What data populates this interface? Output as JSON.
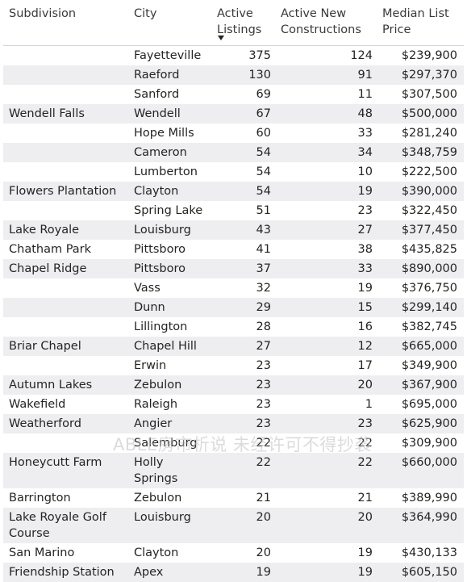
{
  "headers": {
    "subdivision": "Subdivision",
    "city": "City",
    "active_line1": "Active",
    "active_line2": "Listings",
    "new_line1": "Active New",
    "new_line2": "Constructions",
    "price_line1": "Median List",
    "price_line2": "Price"
  },
  "sort": {
    "column": "Active Listings",
    "direction": "descending",
    "icon": "sort-down-icon"
  },
  "colors": {
    "alt_row": "#eeedf0",
    "text": "#252423"
  },
  "rows": [
    {
      "subdivision": "",
      "city": "Fayetteville",
      "active": "375",
      "new": "124",
      "price": "$239,900"
    },
    {
      "subdivision": "",
      "city": "Raeford",
      "active": "130",
      "new": "91",
      "price": "$297,370"
    },
    {
      "subdivision": "",
      "city": "Sanford",
      "active": "69",
      "new": "11",
      "price": "$307,500"
    },
    {
      "subdivision": "Wendell Falls",
      "city": "Wendell",
      "active": "67",
      "new": "48",
      "price": "$500,000"
    },
    {
      "subdivision": "",
      "city": "Hope Mills",
      "active": "60",
      "new": "33",
      "price": "$281,240"
    },
    {
      "subdivision": "",
      "city": "Cameron",
      "active": "54",
      "new": "34",
      "price": "$348,759"
    },
    {
      "subdivision": "",
      "city": "Lumberton",
      "active": "54",
      "new": "10",
      "price": "$222,500"
    },
    {
      "subdivision": "Flowers Plantation",
      "city": "Clayton",
      "active": "54",
      "new": "19",
      "price": "$390,000"
    },
    {
      "subdivision": "",
      "city": "Spring Lake",
      "active": "51",
      "new": "23",
      "price": "$322,450"
    },
    {
      "subdivision": "Lake Royale",
      "city": "Louisburg",
      "active": "43",
      "new": "27",
      "price": "$377,450"
    },
    {
      "subdivision": "Chatham Park",
      "city": "Pittsboro",
      "active": "41",
      "new": "38",
      "price": "$435,825"
    },
    {
      "subdivision": "Chapel Ridge",
      "city": "Pittsboro",
      "active": "37",
      "new": "33",
      "price": "$890,000"
    },
    {
      "subdivision": "",
      "city": "Vass",
      "active": "32",
      "new": "19",
      "price": "$376,750"
    },
    {
      "subdivision": "",
      "city": "Dunn",
      "active": "29",
      "new": "15",
      "price": "$299,140"
    },
    {
      "subdivision": "",
      "city": "Lillington",
      "active": "28",
      "new": "16",
      "price": "$382,745"
    },
    {
      "subdivision": "Briar Chapel",
      "city": "Chapel Hill",
      "active": "27",
      "new": "12",
      "price": "$665,000"
    },
    {
      "subdivision": "",
      "city": "Erwin",
      "active": "23",
      "new": "17",
      "price": "$349,900"
    },
    {
      "subdivision": "Autumn Lakes",
      "city": "Zebulon",
      "active": "23",
      "new": "20",
      "price": "$367,900"
    },
    {
      "subdivision": "Wakefield",
      "city": "Raleigh",
      "active": "23",
      "new": "1",
      "price": "$695,000"
    },
    {
      "subdivision": "Weatherford",
      "city": "Angier",
      "active": "23",
      "new": "23",
      "price": "$625,900"
    },
    {
      "subdivision": "",
      "city": "Salemburg",
      "active": "22",
      "new": "22",
      "price": "$309,900"
    },
    {
      "subdivision": "Honeycutt Farm",
      "city": "Holly Springs",
      "active": "22",
      "new": "22",
      "price": "$660,000",
      "tall": true
    },
    {
      "subdivision": "Barrington",
      "city": "Zebulon",
      "active": "21",
      "new": "21",
      "price": "$389,990"
    },
    {
      "subdivision": "Lake Royale Golf Course",
      "city": "Louisburg",
      "active": "20",
      "new": "20",
      "price": "$364,990",
      "tall": true
    },
    {
      "subdivision": "San Marino",
      "city": "Clayton",
      "active": "20",
      "new": "19",
      "price": "$430,133"
    },
    {
      "subdivision": "Friendship Station",
      "city": "Apex",
      "active": "19",
      "new": "19",
      "price": "$605,150"
    }
  ],
  "watermark": "ABLE房市析说 未经许可不得抄袭"
}
